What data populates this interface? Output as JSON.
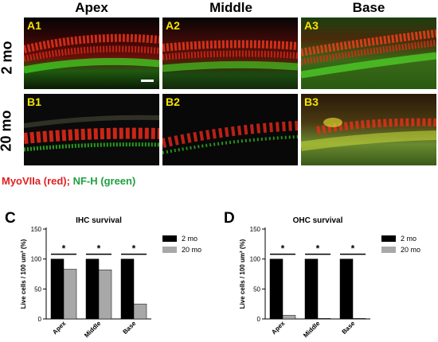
{
  "columns": [
    "Apex",
    "Middle",
    "Base"
  ],
  "rows": [
    "2 mo",
    "20 mo"
  ],
  "panel_labels": [
    "A1",
    "A2",
    "A3",
    "B1",
    "B2",
    "B3"
  ],
  "legend": {
    "red_text": "MyoVIIa  (red);",
    "green_text": "NF-H (green)"
  },
  "colors": {
    "red": "#e02020",
    "green": "#20a040",
    "label_yellow": "#f5e400",
    "bar_2mo": "#000000",
    "bar_20mo": "#a8a8a8"
  },
  "chart_data": [
    {
      "type": "bar",
      "panel_letter": "C",
      "title": "IHC survival",
      "ylabel": "Live cells / 100 um² (%)",
      "xlabel": "",
      "categories": [
        "Apex",
        "Middle",
        "Base"
      ],
      "series": [
        {
          "name": "2 mo",
          "values": [
            100,
            100,
            100
          ]
        },
        {
          "name": "20 mo",
          "values": [
            83,
            82,
            25
          ]
        }
      ],
      "ylim": [
        0,
        150
      ],
      "yticks": [
        0,
        50,
        100,
        150
      ],
      "significance": [
        "*",
        "*",
        "*"
      ],
      "legend_position": "right"
    },
    {
      "type": "bar",
      "panel_letter": "D",
      "title": "OHC survival",
      "ylabel": "Live cells / 100 um² (%)",
      "xlabel": "",
      "categories": [
        "Apex",
        "Middle",
        "Base"
      ],
      "series": [
        {
          "name": "2 mo",
          "values": [
            100,
            100,
            100
          ]
        },
        {
          "name": "20 mo",
          "values": [
            6,
            1,
            1
          ]
        }
      ],
      "ylim": [
        0,
        150
      ],
      "yticks": [
        0,
        50,
        100,
        150
      ],
      "significance": [
        "*",
        "*",
        "*"
      ],
      "legend_position": "right"
    }
  ]
}
